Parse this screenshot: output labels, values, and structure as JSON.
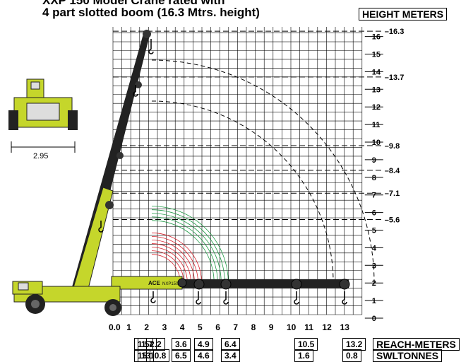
{
  "header": {
    "title_line1": "XXP 150 Model Crane rated with",
    "title_line2": "4 part slotted boom (16.3 Mtrs. height)",
    "height_label": "HEIGHT METERS"
  },
  "vehicle_front": {
    "width_label": "2.95"
  },
  "chart_data": {
    "type": "load_chart",
    "y_ticks": [
      "0",
      "1",
      "2",
      "3",
      "4",
      "5",
      "6",
      "7",
      "8",
      "9",
      "10",
      "11",
      "12",
      "13",
      "14",
      "15",
      "16"
    ],
    "x_ticks": [
      "0.0",
      "1",
      "2",
      "3",
      "4",
      "5",
      "6",
      "7",
      "8",
      "9",
      "10",
      "11",
      "12",
      "13"
    ],
    "height_marks": [
      {
        "value": 16.3,
        "label": "–16.3"
      },
      {
        "value": 13.7,
        "label": "–13.7"
      },
      {
        "value": 9.8,
        "label": "–9.8"
      },
      {
        "value": 8.4,
        "label": "–8.4"
      },
      {
        "value": 7.1,
        "label": "–7.1"
      },
      {
        "value": 5.6,
        "label": "–5.6"
      }
    ],
    "reach_swl": [
      {
        "reach": "1.5",
        "swl": "15"
      },
      {
        "reach": "1.7",
        "swl": "13"
      },
      {
        "reach": "2.2",
        "swl": "10.8"
      },
      {
        "reach": "3.6",
        "swl": "6.5"
      },
      {
        "reach": "4.9",
        "swl": "4.6"
      },
      {
        "reach": "6.4",
        "swl": "3.4"
      },
      {
        "reach": "10.5",
        "swl": "1.6"
      },
      {
        "reach": "13.2",
        "swl": "0.8"
      }
    ],
    "reach_label": "REACH-METERS",
    "swl_label": "SWLTONNES",
    "boom_brand": "ACE",
    "boom_model": "NXP150",
    "colors": {
      "boom": "#c5d62b",
      "arc_red": "#d9232d",
      "arc_green": "#1f9a45",
      "grid": "#000000"
    }
  }
}
